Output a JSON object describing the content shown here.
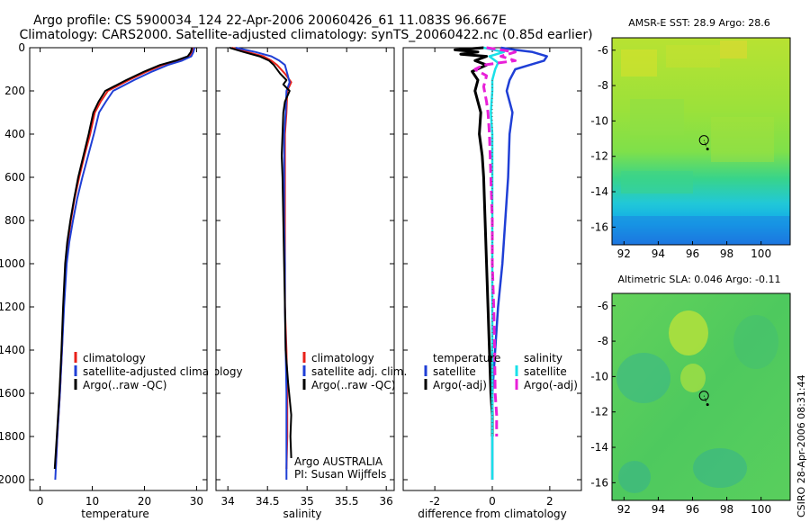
{
  "title": {
    "line1": "Argo profile: CS 5900034_124 22-Apr-2006 20060426_61 11.083S 96.667E",
    "line2": "Climatology: CARS2000. Satellite-adjusted climatology: synTS_20060422.nc (0.85d earlier)"
  },
  "side_label": "CSIRO 28-Apr-2006 08:31:44",
  "chart_data": [
    {
      "type": "line",
      "id": "temperature",
      "xlabel": "temperature",
      "ylabel": "",
      "xlim": [
        -2,
        32
      ],
      "ylim": [
        2050,
        0
      ],
      "xticks": [
        "0",
        "10",
        "20",
        "30"
      ],
      "xtick_values": [
        0,
        10,
        20,
        30
      ],
      "yticks": [
        "0",
        "200",
        "400",
        "600",
        "800",
        "1000",
        "1200",
        "1400",
        "1600",
        "1800",
        "2000"
      ],
      "ytick_values": [
        0,
        200,
        400,
        600,
        800,
        1000,
        1200,
        1400,
        1600,
        1800,
        2000
      ],
      "legend": [
        "climatology",
        "satellite-adjusted climatology",
        "Argo(..raw -QC)"
      ],
      "series": [
        {
          "name": "climatology",
          "color": "#e8211a",
          "points": [
            [
              29.3,
              0
            ],
            [
              29.1,
              20
            ],
            [
              28.6,
              40
            ],
            [
              26.5,
              60
            ],
            [
              23.5,
              80
            ],
            [
              20.5,
              110
            ],
            [
              17,
              150
            ],
            [
              13,
              200
            ],
            [
              11.6,
              250
            ],
            [
              10.5,
              300
            ],
            [
              9.6,
              400
            ],
            [
              8.5,
              500
            ],
            [
              7.5,
              600
            ],
            [
              6.6,
              700
            ],
            [
              5.9,
              800
            ],
            [
              5.3,
              900
            ],
            [
              4.9,
              1000
            ],
            [
              4.5,
              1200
            ],
            [
              4.2,
              1400
            ],
            [
              3.8,
              1600
            ],
            [
              3.3,
              1800
            ],
            [
              3,
              1950
            ]
          ]
        },
        {
          "name": "satellite-adjusted climatology",
          "color": "#1f3fd6",
          "points": [
            [
              29.6,
              0
            ],
            [
              29.4,
              20
            ],
            [
              29,
              40
            ],
            [
              27.2,
              60
            ],
            [
              24.5,
              80
            ],
            [
              21.5,
              110
            ],
            [
              18,
              150
            ],
            [
              14,
              200
            ],
            [
              12.6,
              250
            ],
            [
              11.3,
              300
            ],
            [
              10.3,
              400
            ],
            [
              9.2,
              500
            ],
            [
              8.1,
              600
            ],
            [
              7.1,
              700
            ],
            [
              6.3,
              800
            ],
            [
              5.6,
              900
            ],
            [
              5.1,
              1000
            ],
            [
              4.6,
              1200
            ],
            [
              4.2,
              1400
            ],
            [
              3.8,
              1600
            ],
            [
              3.3,
              1800
            ],
            [
              2.9,
              2000
            ]
          ]
        },
        {
          "name": "Argo(..raw -QC)",
          "color": "#000000",
          "points": [
            [
              29.1,
              0
            ],
            [
              28.9,
              20
            ],
            [
              28.3,
              40
            ],
            [
              26,
              60
            ],
            [
              23,
              80
            ],
            [
              20,
              110
            ],
            [
              16.5,
              150
            ],
            [
              12.5,
              200
            ],
            [
              11.2,
              250
            ],
            [
              10.2,
              300
            ],
            [
              9.3,
              400
            ],
            [
              8.3,
              500
            ],
            [
              7.3,
              600
            ],
            [
              6.5,
              700
            ],
            [
              5.8,
              800
            ],
            [
              5.2,
              900
            ],
            [
              4.8,
              1000
            ],
            [
              4.4,
              1200
            ],
            [
              4.1,
              1400
            ],
            [
              3.7,
              1600
            ],
            [
              3.2,
              1800
            ],
            [
              2.8,
              1950
            ]
          ]
        }
      ]
    },
    {
      "type": "line",
      "id": "salinity",
      "xlabel": "salinity",
      "xlim": [
        33.85,
        36.1
      ],
      "ylim": [
        2050,
        0
      ],
      "xticks": [
        "34",
        "34.5",
        "35",
        "35.5",
        "36"
      ],
      "xtick_values": [
        34,
        34.5,
        35,
        35.5,
        36
      ],
      "legend": [
        "climatology",
        "satellite adj. clim.",
        "Argo(..raw -QC)"
      ],
      "annotation": [
        "Argo AUSTRALIA",
        "PI: Susan Wijffels"
      ],
      "series": [
        {
          "name": "climatology",
          "color": "#e8211a",
          "points": [
            [
              34.05,
              0
            ],
            [
              34.25,
              20
            ],
            [
              34.45,
              40
            ],
            [
              34.55,
              60
            ],
            [
              34.62,
              80
            ],
            [
              34.72,
              120
            ],
            [
              34.8,
              160
            ],
            [
              34.75,
              200
            ],
            [
              34.74,
              300
            ],
            [
              34.72,
              400
            ],
            [
              34.72,
              600
            ],
            [
              34.72,
              800
            ],
            [
              34.72,
              1000
            ],
            [
              34.72,
              1200
            ],
            [
              34.74,
              1400
            ],
            [
              34.75,
              1600
            ],
            [
              34.75,
              1800
            ],
            [
              34.74,
              1950
            ]
          ]
        },
        {
          "name": "satellite adj. clim.",
          "color": "#1f3fd6",
          "points": [
            [
              34.1,
              0
            ],
            [
              34.35,
              20
            ],
            [
              34.55,
              40
            ],
            [
              34.65,
              60
            ],
            [
              34.72,
              80
            ],
            [
              34.75,
              120
            ],
            [
              34.78,
              160
            ],
            [
              34.74,
              200
            ],
            [
              34.73,
              300
            ],
            [
              34.71,
              400
            ],
            [
              34.71,
              600
            ],
            [
              34.71,
              800
            ],
            [
              34.72,
              1000
            ],
            [
              34.72,
              1200
            ],
            [
              34.73,
              1400
            ],
            [
              34.74,
              1600
            ],
            [
              34.74,
              1800
            ],
            [
              34.74,
              2000
            ]
          ]
        },
        {
          "name": "Argo(..raw -QC)",
          "color": "#000000",
          "points": [
            [
              34.02,
              0
            ],
            [
              34.2,
              20
            ],
            [
              34.4,
              40
            ],
            [
              34.52,
              60
            ],
            [
              34.58,
              80
            ],
            [
              34.66,
              120
            ],
            [
              34.74,
              150
            ],
            [
              34.7,
              170
            ],
            [
              34.78,
              200
            ],
            [
              34.72,
              250
            ],
            [
              34.7,
              300
            ],
            [
              34.69,
              400
            ],
            [
              34.68,
              500
            ],
            [
              34.69,
              600
            ],
            [
              34.7,
              800
            ],
            [
              34.71,
              1000
            ],
            [
              34.72,
              1200
            ],
            [
              34.73,
              1400
            ],
            [
              34.76,
              1550
            ],
            [
              34.8,
              1700
            ],
            [
              34.79,
              1800
            ],
            [
              34.8,
              1900
            ]
          ]
        }
      ]
    },
    {
      "type": "line",
      "id": "difference",
      "xlabel": "difference from climatology",
      "xlim": [
        -3.1,
        3.1
      ],
      "ylim": [
        2050,
        0
      ],
      "xticks": [
        "-2",
        "0",
        "2"
      ],
      "xtick_values": [
        -2,
        0,
        2
      ],
      "legend_left_title": "temperature",
      "legend_right_title": "salinity",
      "legend_left": [
        "satellite",
        "Argo(-adj)"
      ],
      "legend_right": [
        "satellite",
        "Argo(-adj)"
      ],
      "series": [
        {
          "name": "temperature satellite",
          "color": "#1f3fd6",
          "points": [
            [
              0.3,
              0
            ],
            [
              0.8,
              10
            ],
            [
              1.4,
              20
            ],
            [
              1.9,
              40
            ],
            [
              1.8,
              60
            ],
            [
              1.3,
              80
            ],
            [
              0.8,
              100
            ],
            [
              0.6,
              150
            ],
            [
              0.5,
              200
            ],
            [
              0.6,
              250
            ],
            [
              0.7,
              300
            ],
            [
              0.6,
              400
            ],
            [
              0.55,
              600
            ],
            [
              0.45,
              800
            ],
            [
              0.35,
              1000
            ],
            [
              0.2,
              1200
            ],
            [
              0.1,
              1400
            ],
            [
              0,
              1600
            ],
            [
              0,
              1800
            ],
            [
              0,
              2000
            ]
          ]
        },
        {
          "name": "temperature Argo(-adj)",
          "color": "#000000",
          "points": [
            [
              -0.3,
              0
            ],
            [
              -1.3,
              10
            ],
            [
              -0.5,
              20
            ],
            [
              -1.1,
              30
            ],
            [
              -0.2,
              40
            ],
            [
              -0.6,
              60
            ],
            [
              -0.2,
              80
            ],
            [
              -0.7,
              110
            ],
            [
              -0.5,
              150
            ],
            [
              -0.6,
              200
            ],
            [
              -0.5,
              250
            ],
            [
              -0.4,
              300
            ],
            [
              -0.45,
              400
            ],
            [
              -0.35,
              500
            ],
            [
              -0.3,
              600
            ],
            [
              -0.25,
              800
            ],
            [
              -0.2,
              1000
            ],
            [
              -0.15,
              1200
            ],
            [
              -0.1,
              1400
            ],
            [
              -0.05,
              1600
            ],
            [
              0,
              1700
            ],
            [
              0,
              1800
            ]
          ]
        },
        {
          "name": "salinity satellite",
          "color": "#1ae0e8",
          "points": [
            [
              -0.3,
              0
            ],
            [
              0.4,
              20
            ],
            [
              -0.1,
              40
            ],
            [
              0.2,
              70
            ],
            [
              0.1,
              100
            ],
            [
              0,
              150
            ],
            [
              0,
              200
            ],
            [
              -0.05,
              300
            ],
            [
              0,
              400
            ],
            [
              0,
              600
            ],
            [
              0,
              800
            ],
            [
              0,
              1000
            ],
            [
              0,
              1200
            ],
            [
              0,
              1400
            ],
            [
              0,
              1600
            ],
            [
              0,
              1800
            ],
            [
              0,
              2000
            ]
          ]
        },
        {
          "name": "salinity Argo(-adj)",
          "color": "#e820d8",
          "points": [
            [
              -0.2,
              0
            ],
            [
              0.8,
              20
            ],
            [
              0.3,
              40
            ],
            [
              0.8,
              60
            ],
            [
              -0.3,
              80
            ],
            [
              -0.6,
              100
            ],
            [
              -0.2,
              130
            ],
            [
              -0.3,
              180
            ],
            [
              -0.2,
              250
            ],
            [
              -0.15,
              300
            ],
            [
              -0.1,
              400
            ],
            [
              -0.05,
              600
            ],
            [
              0,
              800
            ],
            [
              0,
              1000
            ],
            [
              0.05,
              1200
            ],
            [
              0.08,
              1400
            ],
            [
              0.1,
              1600
            ],
            [
              0.15,
              1700
            ],
            [
              0.15,
              1800
            ]
          ]
        }
      ]
    },
    {
      "type": "heatmap",
      "id": "sst_map",
      "title": "AMSR-E SST: 28.9 Argo: 28.6",
      "xlim": [
        91.3,
        101.7
      ],
      "ylim": [
        -17,
        -5.3
      ],
      "xticks": [
        "92",
        "94",
        "96",
        "98",
        "100"
      ],
      "xtick_values": [
        92,
        94,
        96,
        98,
        100
      ],
      "yticks": [
        "-6",
        "-8",
        "-10",
        "-12",
        "-14",
        "-16"
      ],
      "ytick_values": [
        -6,
        -8,
        -10,
        -12,
        -14,
        -16
      ],
      "profile_lon": 96.667,
      "profile_lat": -11.083
    },
    {
      "type": "heatmap",
      "id": "sla_map",
      "title": "Altimetric SLA: 0.046 Argo: -0.11",
      "xlim": [
        91.3,
        101.7
      ],
      "ylim": [
        -17,
        -5.3
      ],
      "xticks": [
        "92",
        "94",
        "96",
        "98",
        "100"
      ],
      "xtick_values": [
        92,
        94,
        96,
        98,
        100
      ],
      "yticks": [
        "-6",
        "-8",
        "-10",
        "-12",
        "-14",
        "-16"
      ],
      "ytick_values": [
        -6,
        -8,
        -10,
        -12,
        -14,
        -16
      ],
      "profile_lon": 96.667,
      "profile_lat": -11.083
    }
  ]
}
